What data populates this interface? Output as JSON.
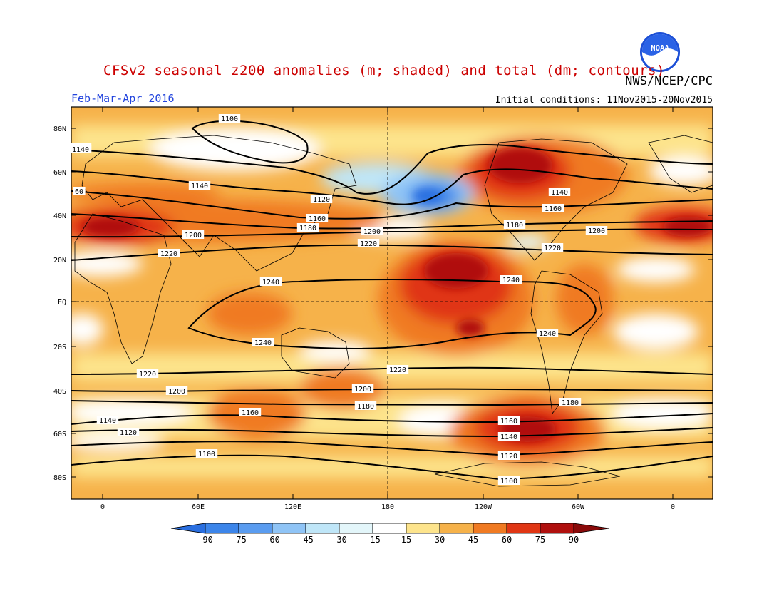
{
  "header": {
    "title": "CFSv2 seasonal z200 anomalies (m; shaded) and total (dm; contours)",
    "org": "NWS/NCEP/CPC",
    "season": "Feb-Mar-Apr 2016",
    "init": "Initial conditions: 11Nov2015-20Nov2015",
    "logo_text": "NOAA"
  },
  "axes": {
    "lat_labels": [
      "80N",
      "60N",
      "40N",
      "20N",
      "EQ",
      "20S",
      "40S",
      "60S",
      "80S"
    ],
    "lon_labels": [
      "0",
      "60E",
      "120E",
      "180",
      "120W",
      "60W",
      "0"
    ]
  },
  "colorbar": {
    "labels": [
      "-90",
      "-75",
      "-60",
      "-45",
      "-30",
      "-15",
      "15",
      "30",
      "45",
      "60",
      "75",
      "90"
    ],
    "colors": [
      "#2a6fe0",
      "#3c85ea",
      "#5a9cf0",
      "#8fc4f6",
      "#bfe6f8",
      "#e3f6fa",
      "#ffffff",
      "#fde48c",
      "#f6b24a",
      "#f07a22",
      "#e03614",
      "#b0100e",
      "#8a0a0a"
    ]
  },
  "contour_labels": [
    "1100",
    "1120",
    "1140",
    "60",
    "1120",
    "1140",
    "1160",
    "1180",
    "1200",
    "1220",
    "1240",
    "1200",
    "1220",
    "1140",
    "1160",
    "1180",
    "1200",
    "1220",
    "1240",
    "1240",
    "1240",
    "1240",
    "1220",
    "1200",
    "1180",
    "1160",
    "1140",
    "1120",
    "1100",
    "1220",
    "1200",
    "1180",
    "1160",
    "1140",
    "1120",
    "1100"
  ]
}
